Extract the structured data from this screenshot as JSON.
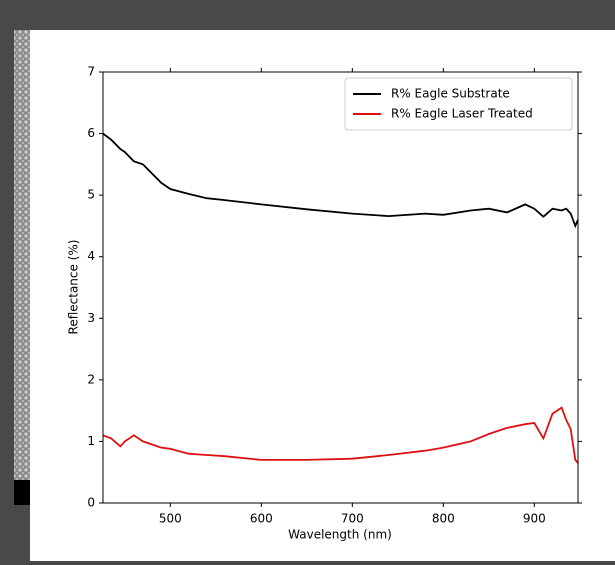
{
  "chart_data": {
    "type": "line",
    "x_label": "Wavelength (nm)",
    "y_label": "Reflectance (%)",
    "x": [
      426,
      435,
      445,
      450,
      460,
      470,
      480,
      490,
      500,
      520,
      540,
      560,
      600,
      650,
      700,
      740,
      780,
      800,
      830,
      850,
      870,
      890,
      900,
      910,
      920,
      930,
      935,
      940,
      945,
      948
    ],
    "series": [
      {
        "name": "R% Eagle Substrate",
        "color": "#000000",
        "values": [
          6.0,
          5.9,
          5.75,
          5.7,
          5.55,
          5.5,
          5.35,
          5.2,
          5.1,
          5.02,
          4.95,
          4.92,
          4.85,
          4.77,
          4.7,
          4.66,
          4.7,
          4.68,
          4.75,
          4.78,
          4.72,
          4.85,
          4.78,
          4.65,
          4.78,
          4.75,
          4.78,
          4.7,
          4.5,
          4.6
        ]
      },
      {
        "name": "R% Eagle Laser Treated",
        "color": "#dd1111",
        "values": [
          1.1,
          1.05,
          0.92,
          1.0,
          1.1,
          1.0,
          0.95,
          0.9,
          0.88,
          0.8,
          0.78,
          0.76,
          0.7,
          0.7,
          0.72,
          0.78,
          0.85,
          0.9,
          1.0,
          1.12,
          1.22,
          1.28,
          1.3,
          1.05,
          1.45,
          1.55,
          1.35,
          1.2,
          0.7,
          0.65
        ]
      }
    ],
    "xlim": [
      426,
      948
    ],
    "xticks": [
      500,
      600,
      700,
      800,
      900
    ],
    "ylim": [
      0,
      7
    ],
    "yticks": [
      0,
      1,
      2,
      3,
      4,
      5,
      6,
      7
    ],
    "legend": "upper right"
  }
}
